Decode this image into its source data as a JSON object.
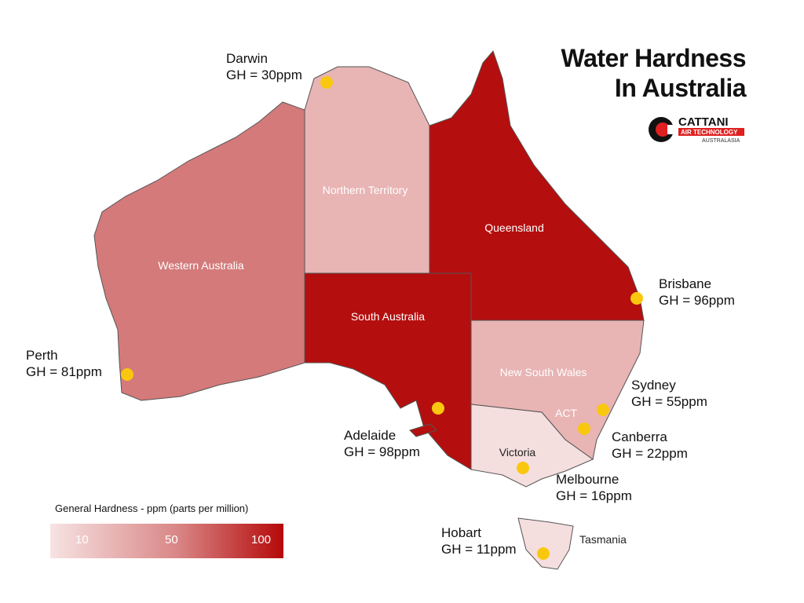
{
  "title": {
    "line1": "Water Hardness",
    "line2": "In Australia"
  },
  "logo": {
    "brand": "CATTANI",
    "tagline": "AIR TECHNOLOGY",
    "region": "AUSTRALASIA"
  },
  "colors": {
    "low": "#f5dede",
    "light": "#e8b4b4",
    "mid": "#d47a7a",
    "high": "#b50e0e",
    "marker": "#f9c80e"
  },
  "regions": [
    {
      "name": "Western Australia",
      "level": "mid"
    },
    {
      "name": "Northern Territory",
      "level": "light"
    },
    {
      "name": "Queensland",
      "level": "high"
    },
    {
      "name": "South Australia",
      "level": "high"
    },
    {
      "name": "New South Wales",
      "level": "light"
    },
    {
      "name": "ACT",
      "level": "light"
    },
    {
      "name": "Victoria",
      "level": "low"
    },
    {
      "name": "Tasmania",
      "level": "low"
    }
  ],
  "cities": [
    {
      "name": "Darwin",
      "value": "GH = 30ppm"
    },
    {
      "name": "Brisbane",
      "value": "GH = 96ppm"
    },
    {
      "name": "Perth",
      "value": "GH = 81ppm"
    },
    {
      "name": "Sydney",
      "value": "GH = 55ppm"
    },
    {
      "name": "Adelaide",
      "value": "GH = 98ppm"
    },
    {
      "name": "Canberra",
      "value": "GH = 22ppm"
    },
    {
      "name": "Melbourne",
      "value": "GH = 16ppm"
    },
    {
      "name": "Hobart",
      "value": "GH = 11ppm"
    }
  ],
  "legend": {
    "title": "General Hardness - ppm (parts per million)",
    "ticks": [
      "10",
      "50",
      "100"
    ]
  }
}
